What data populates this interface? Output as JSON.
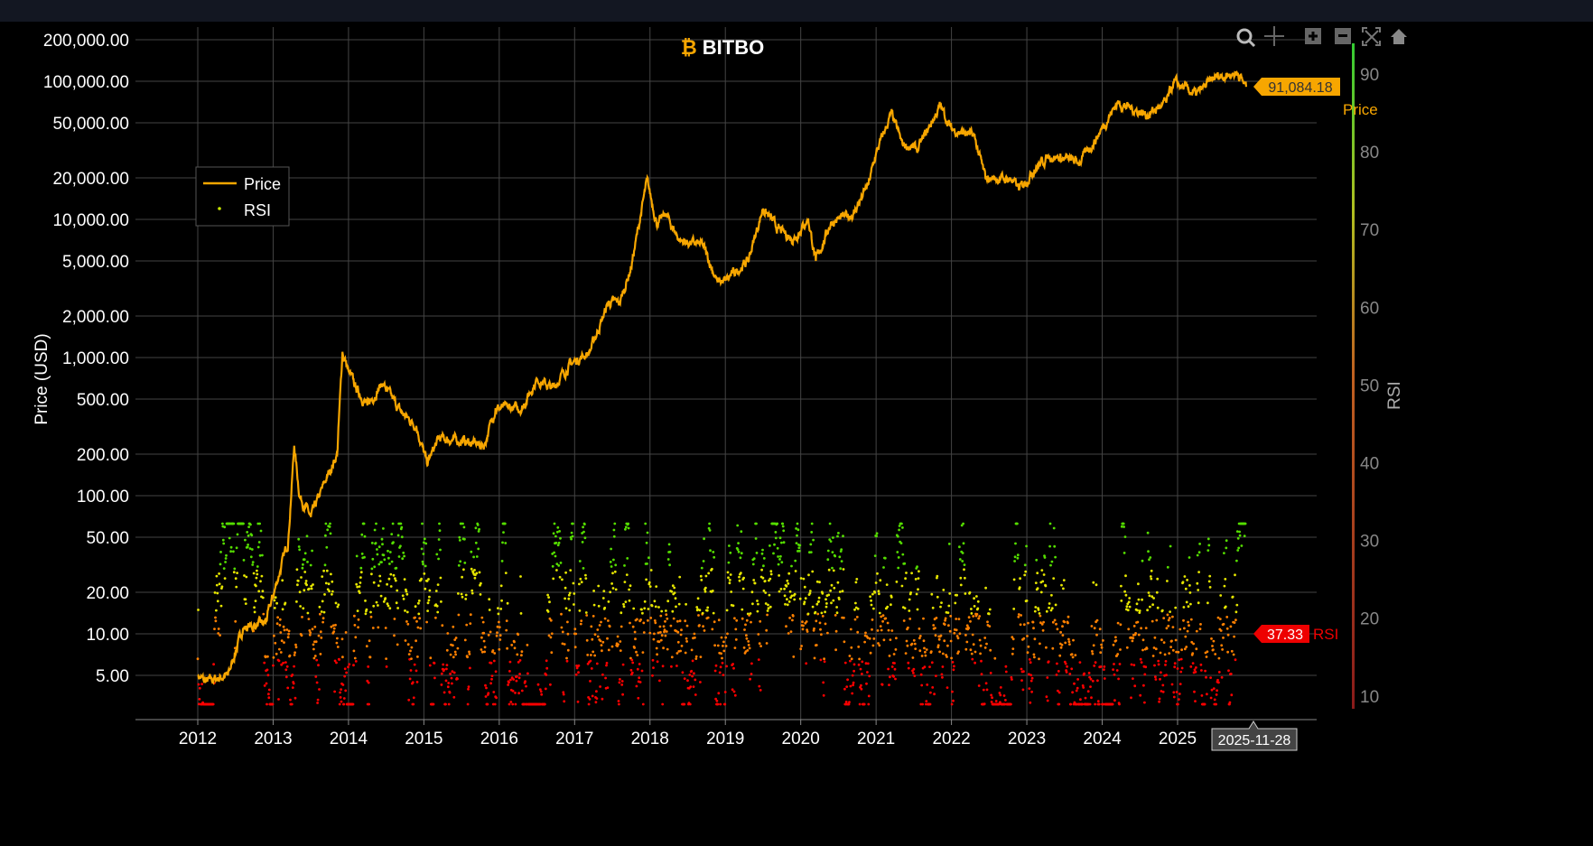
{
  "brand": "BITBO",
  "toolbar": {
    "icons": [
      "zoom-icon",
      "pan-icon",
      "zoom-in-icon",
      "zoom-out-icon",
      "autoscale-icon",
      "reset-home-icon"
    ]
  },
  "legend": {
    "placement": "top-left",
    "items": [
      {
        "label": "Price",
        "color": "#f7a600"
      },
      {
        "label": "RSI",
        "color": "#c8e600"
      }
    ]
  },
  "chart_data": {
    "type": "line",
    "title": "",
    "ylabel": "Price (USD)",
    "y2label": "RSI",
    "yscale": "log",
    "ylim": [
      3,
      200000
    ],
    "y2lim": [
      10,
      90
    ],
    "grid": true,
    "x_ticks": [
      "2012",
      "2013",
      "2014",
      "2015",
      "2016",
      "2017",
      "2018",
      "2019",
      "2020",
      "2021",
      "2022",
      "2023",
      "2024",
      "2025"
    ],
    "y_ticks": [
      "200,000.00",
      "100,000.00",
      "50,000.00",
      "20,000.00",
      "10,000.00",
      "5,000.00",
      "2,000.00",
      "1,000.00",
      "500.00",
      "200.00",
      "100.00",
      "50.00",
      "20.00",
      "10.00",
      "5.00"
    ],
    "y_tick_values": [
      200000,
      100000,
      50000,
      20000,
      10000,
      5000,
      2000,
      1000,
      500,
      200,
      100,
      50,
      20,
      10,
      5
    ],
    "y2_ticks": [
      "90",
      "80",
      "70",
      "60",
      "50",
      "40",
      "30",
      "20",
      "10"
    ],
    "series": [
      {
        "name": "Price",
        "color": "#f7a600",
        "points": [
          [
            2012.0,
            5
          ],
          [
            2012.1,
            4.5
          ],
          [
            2012.4,
            5
          ],
          [
            2012.6,
            11
          ],
          [
            2012.9,
            12
          ],
          [
            2013.2,
            47
          ],
          [
            2013.28,
            230
          ],
          [
            2013.35,
            100
          ],
          [
            2013.5,
            70
          ],
          [
            2013.7,
            130
          ],
          [
            2013.85,
            200
          ],
          [
            2013.92,
            1100
          ],
          [
            2014.0,
            800
          ],
          [
            2014.1,
            600
          ],
          [
            2014.25,
            450
          ],
          [
            2014.45,
            650
          ],
          [
            2014.7,
            400
          ],
          [
            2014.9,
            320
          ],
          [
            2015.04,
            170
          ],
          [
            2015.2,
            260
          ],
          [
            2015.5,
            250
          ],
          [
            2015.8,
            230
          ],
          [
            2015.95,
            430
          ],
          [
            2016.3,
            430
          ],
          [
            2016.5,
            700
          ],
          [
            2016.7,
            600
          ],
          [
            2016.95,
            900
          ],
          [
            2017.2,
            1100
          ],
          [
            2017.45,
            2500
          ],
          [
            2017.6,
            2500
          ],
          [
            2017.75,
            4500
          ],
          [
            2017.96,
            19000
          ],
          [
            2018.1,
            9000
          ],
          [
            2018.2,
            11000
          ],
          [
            2018.4,
            7000
          ],
          [
            2018.7,
            6500
          ],
          [
            2018.9,
            3500
          ],
          [
            2019.0,
            3600
          ],
          [
            2019.3,
            5000
          ],
          [
            2019.5,
            12000
          ],
          [
            2019.7,
            8500
          ],
          [
            2019.9,
            7200
          ],
          [
            2020.1,
            10000
          ],
          [
            2020.2,
            5000
          ],
          [
            2020.4,
            9500
          ],
          [
            2020.7,
            11000
          ],
          [
            2020.9,
            18000
          ],
          [
            2021.0,
            30000
          ],
          [
            2021.2,
            58000
          ],
          [
            2021.35,
            35000
          ],
          [
            2021.55,
            32000
          ],
          [
            2021.85,
            66000
          ],
          [
            2022.0,
            45000
          ],
          [
            2022.3,
            40000
          ],
          [
            2022.45,
            20000
          ],
          [
            2022.8,
            19500
          ],
          [
            2022.9,
            16500
          ],
          [
            2023.1,
            23000
          ],
          [
            2023.3,
            29000
          ],
          [
            2023.7,
            26000
          ],
          [
            2023.9,
            37000
          ],
          [
            2024.2,
            70000
          ],
          [
            2024.6,
            57000
          ],
          [
            2024.85,
            70000
          ],
          [
            2024.95,
            98000
          ],
          [
            2025.25,
            80000
          ],
          [
            2025.5,
            108000
          ],
          [
            2025.8,
            115000
          ],
          [
            2025.91,
            91084.18
          ]
        ]
      },
      {
        "name": "RSI",
        "colorscale": [
          "#ff0000",
          "#ff8000",
          "#e6e600",
          "#55dd00"
        ]
      }
    ],
    "last_price_label": "91,084.18",
    "last_price_series": "Price",
    "last_rsi_label": "37.33",
    "last_rsi_series": "RSI",
    "hover_date": "2025-11-28"
  }
}
